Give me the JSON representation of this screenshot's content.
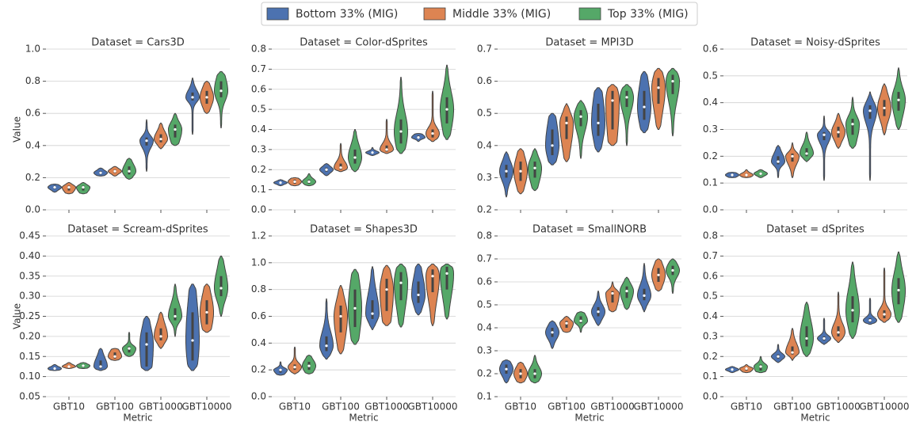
{
  "legend": {
    "entries": [
      {
        "name": "Bottom 33% (MIG)",
        "color": "#4c72b0"
      },
      {
        "name": "Middle 33% (MIG)",
        "color": "#dd8452"
      },
      {
        "name": "Top 33% (MIG)",
        "color": "#55a868"
      }
    ]
  },
  "chart_data": [
    {
      "type": "violin",
      "title": "Dataset = Cars3D",
      "ylabel": "Value",
      "ylim": [
        0,
        1.0
      ],
      "yticks": [
        {
          "value": 0,
          "label": "0.0"
        },
        0.2,
        0.4,
        0.6,
        0.8,
        {
          "value": 1.0,
          "label": "1.0"
        }
      ],
      "grid": true,
      "series": [
        {
          "values": [
            [
              0.11,
              0.13,
              0.14,
              0.15,
              0.16
            ],
            [
              0.21,
              0.22,
              0.23,
              0.24,
              0.26
            ],
            [
              0.24,
              0.4,
              0.43,
              0.45,
              0.56
            ],
            [
              0.47,
              0.68,
              0.7,
              0.73,
              0.82
            ]
          ]
        },
        {
          "values": [
            [
              0.1,
              0.12,
              0.14,
              0.15,
              0.17
            ],
            [
              0.21,
              0.23,
              0.24,
              0.25,
              0.27
            ],
            [
              0.38,
              0.42,
              0.44,
              0.47,
              0.54
            ],
            [
              0.6,
              0.66,
              0.7,
              0.74,
              0.8
            ]
          ]
        },
        {
          "values": [
            [
              0.1,
              0.12,
              0.14,
              0.15,
              0.17
            ],
            [
              0.19,
              0.22,
              0.24,
              0.27,
              0.32
            ],
            [
              0.4,
              0.45,
              0.5,
              0.53,
              0.6
            ],
            [
              0.51,
              0.7,
              0.74,
              0.8,
              0.86
            ]
          ]
        }
      ]
    },
    {
      "type": "violin",
      "title": "Dataset = Color-dSprites",
      "ylim": [
        0,
        0.8
      ],
      "yticks": [
        {
          "value": 0,
          "label": "0.0"
        },
        0.1,
        0.2,
        0.3,
        0.4,
        0.5,
        0.6,
        0.7,
        0.8
      ],
      "grid": true,
      "series": [
        {
          "values": [
            [
              0.12,
              0.13,
              0.135,
              0.14,
              0.15
            ],
            [
              0.17,
              0.19,
              0.2,
              0.21,
              0.23
            ],
            [
              0.27,
              0.28,
              0.285,
              0.29,
              0.31
            ],
            [
              0.34,
              0.355,
              0.36,
              0.37,
              0.38
            ]
          ]
        },
        {
          "values": [
            [
              0.12,
              0.13,
              0.14,
              0.15,
              0.16
            ],
            [
              0.19,
              0.2,
              0.21,
              0.23,
              0.33
            ],
            [
              0.28,
              0.29,
              0.3,
              0.32,
              0.45
            ],
            [
              0.34,
              0.36,
              0.38,
              0.4,
              0.59
            ]
          ]
        },
        {
          "values": [
            [
              0.12,
              0.13,
              0.14,
              0.15,
              0.18
            ],
            [
              0.19,
              0.23,
              0.26,
              0.3,
              0.4
            ],
            [
              0.28,
              0.33,
              0.39,
              0.45,
              0.66
            ],
            [
              0.35,
              0.43,
              0.5,
              0.56,
              0.72
            ]
          ]
        }
      ]
    },
    {
      "type": "violin",
      "title": "Dataset = MPI3D",
      "ylim": [
        0.2,
        0.7
      ],
      "yticks": [
        0.2,
        0.3,
        0.4,
        0.5,
        0.6,
        0.7
      ],
      "grid": true,
      "series": [
        {
          "values": [
            [
              0.24,
              0.3,
              0.32,
              0.34,
              0.38
            ],
            [
              0.34,
              0.37,
              0.4,
              0.45,
              0.5
            ],
            [
              0.38,
              0.43,
              0.47,
              0.53,
              0.58
            ],
            [
              0.44,
              0.48,
              0.52,
              0.57,
              0.63
            ]
          ]
        },
        {
          "values": [
            [
              0.25,
              0.29,
              0.32,
              0.35,
              0.39
            ],
            [
              0.35,
              0.42,
              0.47,
              0.49,
              0.53
            ],
            [
              0.4,
              0.45,
              0.54,
              0.57,
              0.59
            ],
            [
              0.45,
              0.53,
              0.58,
              0.61,
              0.64
            ]
          ]
        },
        {
          "values": [
            [
              0.26,
              0.3,
              0.33,
              0.35,
              0.39
            ],
            [
              0.36,
              0.46,
              0.49,
              0.51,
              0.54
            ],
            [
              0.4,
              0.52,
              0.55,
              0.57,
              0.59
            ],
            [
              0.43,
              0.56,
              0.6,
              0.62,
              0.64
            ]
          ]
        }
      ]
    },
    {
      "type": "violin",
      "title": "Dataset = Noisy-dSprites",
      "ylim": [
        0,
        0.6
      ],
      "yticks": [
        {
          "value": 0,
          "label": "0.0"
        },
        0.1,
        0.2,
        0.3,
        0.4,
        0.5,
        0.6
      ],
      "grid": true,
      "series": [
        {
          "values": [
            [
              0.12,
              0.125,
              0.13,
              0.135,
              0.14
            ],
            [
              0.12,
              0.17,
              0.18,
              0.2,
              0.24
            ],
            [
              0.11,
              0.26,
              0.28,
              0.29,
              0.35
            ],
            [
              0.11,
              0.34,
              0.37,
              0.39,
              0.44
            ]
          ]
        },
        {
          "values": [
            [
              0.12,
              0.125,
              0.13,
              0.135,
              0.15
            ],
            [
              0.12,
              0.18,
              0.2,
              0.21,
              0.25
            ],
            [
              0.23,
              0.27,
              0.29,
              0.31,
              0.36
            ],
            [
              0.28,
              0.35,
              0.38,
              0.41,
              0.47
            ]
          ]
        },
        {
          "values": [
            [
              0.12,
              0.13,
              0.135,
              0.14,
              0.15
            ],
            [
              0.18,
              0.2,
              0.21,
              0.23,
              0.29
            ],
            [
              0.23,
              0.28,
              0.32,
              0.34,
              0.42
            ],
            [
              0.3,
              0.37,
              0.41,
              0.44,
              0.53
            ]
          ]
        }
      ]
    },
    {
      "type": "violin",
      "title": "Dataset = Scream-dSprites",
      "ylabel": "Value",
      "xlabel": "Metric",
      "categories": [
        "GBT10",
        "GBT100",
        "GBT1000",
        "GBT10000"
      ],
      "ylim": [
        0.05,
        0.45
      ],
      "yticks": [
        0.05,
        {
          "value": 0.1,
          "label": "0.10"
        },
        0.15,
        {
          "value": 0.2,
          "label": "0.20"
        },
        0.25,
        {
          "value": 0.3,
          "label": "0.30"
        },
        0.35,
        {
          "value": 0.4,
          "label": "0.40"
        },
        0.45
      ],
      "grid": true,
      "series": [
        {
          "values": [
            [
              0.115,
              0.117,
              0.12,
              0.123,
              0.13
            ],
            [
              0.115,
              0.12,
              0.125,
              0.14,
              0.17
            ],
            [
              0.115,
              0.125,
              0.18,
              0.21,
              0.25
            ],
            [
              0.115,
              0.14,
              0.19,
              0.26,
              0.33
            ]
          ]
        },
        {
          "values": [
            [
              0.12,
              0.123,
              0.125,
              0.128,
              0.135
            ],
            [
              0.14,
              0.145,
              0.15,
              0.16,
              0.17
            ],
            [
              0.17,
              0.19,
              0.2,
              0.22,
              0.26
            ],
            [
              0.21,
              0.23,
              0.26,
              0.29,
              0.33
            ]
          ]
        },
        {
          "values": [
            [
              0.12,
              0.123,
              0.127,
              0.13,
              0.135
            ],
            [
              0.15,
              0.16,
              0.17,
              0.175,
              0.21
            ],
            [
              0.2,
              0.24,
              0.25,
              0.27,
              0.33
            ],
            [
              0.25,
              0.3,
              0.32,
              0.35,
              0.4
            ]
          ]
        }
      ]
    },
    {
      "type": "violin",
      "title": "Dataset = Shapes3D",
      "xlabel": "Metric",
      "categories": [
        "GBT10",
        "GBT100",
        "GBT1000",
        "GBT10000"
      ],
      "ylim": [
        0,
        1.2
      ],
      "yticks": [
        {
          "value": 0,
          "label": "0.0"
        },
        0.2,
        0.4,
        0.6,
        0.8,
        {
          "value": 1.0,
          "label": "1.0"
        },
        1.2
      ],
      "grid": true,
      "series": [
        {
          "values": [
            [
              0.16,
              0.18,
              0.2,
              0.21,
              0.26
            ],
            [
              0.28,
              0.34,
              0.38,
              0.45,
              0.73
            ],
            [
              0.5,
              0.58,
              0.62,
              0.72,
              0.97
            ],
            [
              0.61,
              0.7,
              0.76,
              0.86,
              0.99
            ]
          ]
        },
        {
          "values": [
            [
              0.17,
              0.2,
              0.22,
              0.24,
              0.37
            ],
            [
              0.32,
              0.48,
              0.6,
              0.68,
              0.83
            ],
            [
              0.53,
              0.64,
              0.8,
              0.88,
              0.98
            ],
            [
              0.53,
              0.78,
              0.9,
              0.95,
              0.99
            ]
          ]
        },
        {
          "values": [
            [
              0.17,
              0.2,
              0.23,
              0.26,
              0.31
            ],
            [
              0.39,
              0.52,
              0.66,
              0.8,
              0.95
            ],
            [
              0.52,
              0.72,
              0.85,
              0.93,
              0.99
            ],
            [
              0.58,
              0.8,
              0.92,
              0.97,
              0.99
            ]
          ]
        }
      ]
    },
    {
      "type": "violin",
      "title": "Dataset = SmallNORB",
      "xlabel": "Metric",
      "categories": [
        "GBT10",
        "GBT100",
        "GBT1000",
        "GBT10000"
      ],
      "ylim": [
        0.1,
        0.8
      ],
      "yticks": [
        0.1,
        0.2,
        0.3,
        0.4,
        0.5,
        0.6,
        0.7,
        0.8
      ],
      "grid": true,
      "series": [
        {
          "values": [
            [
              0.16,
              0.2,
              0.22,
              0.24,
              0.26
            ],
            [
              0.31,
              0.36,
              0.38,
              0.4,
              0.43
            ],
            [
              0.41,
              0.45,
              0.47,
              0.49,
              0.56
            ],
            [
              0.47,
              0.52,
              0.54,
              0.57,
              0.68
            ]
          ]
        },
        {
          "values": [
            [
              0.16,
              0.18,
              0.2,
              0.22,
              0.25
            ],
            [
              0.38,
              0.4,
              0.42,
              0.43,
              0.45
            ],
            [
              0.47,
              0.51,
              0.55,
              0.56,
              0.6
            ],
            [
              0.56,
              0.6,
              0.63,
              0.66,
              0.7
            ]
          ]
        },
        {
          "values": [
            [
              0.16,
              0.18,
              0.2,
              0.22,
              0.28
            ],
            [
              0.38,
              0.42,
              0.43,
              0.45,
              0.47
            ],
            [
              0.48,
              0.53,
              0.56,
              0.58,
              0.62
            ],
            [
              0.55,
              0.63,
              0.65,
              0.67,
              0.7
            ]
          ]
        }
      ]
    },
    {
      "type": "violin",
      "title": "Dataset = dSprites",
      "xlabel": "Metric",
      "categories": [
        "GBT10",
        "GBT100",
        "GBT1000",
        "GBT10000"
      ],
      "ylim": [
        0,
        0.8
      ],
      "yticks": [
        {
          "value": 0,
          "label": "0.0"
        },
        0.1,
        0.2,
        0.3,
        0.4,
        0.5,
        0.6,
        0.7,
        0.8
      ],
      "grid": true,
      "series": [
        {
          "values": [
            [
              0.12,
              0.13,
              0.135,
              0.14,
              0.15
            ],
            [
              0.17,
              0.19,
              0.2,
              0.21,
              0.26
            ],
            [
              0.26,
              0.28,
              0.29,
              0.3,
              0.39
            ],
            [
              0.36,
              0.37,
              0.38,
              0.39,
              0.49
            ]
          ]
        },
        {
          "values": [
            [
              0.12,
              0.13,
              0.14,
              0.145,
              0.16
            ],
            [
              0.18,
              0.21,
              0.22,
              0.25,
              0.34
            ],
            [
              0.27,
              0.3,
              0.32,
              0.35,
              0.52
            ],
            [
              0.37,
              0.39,
              0.41,
              0.43,
              0.64
            ]
          ]
        },
        {
          "values": [
            [
              0.12,
              0.13,
              0.15,
              0.16,
              0.2
            ],
            [
              0.2,
              0.25,
              0.29,
              0.35,
              0.47
            ],
            [
              0.29,
              0.37,
              0.43,
              0.5,
              0.67
            ],
            [
              0.37,
              0.46,
              0.53,
              0.59,
              0.72
            ]
          ]
        }
      ]
    }
  ]
}
